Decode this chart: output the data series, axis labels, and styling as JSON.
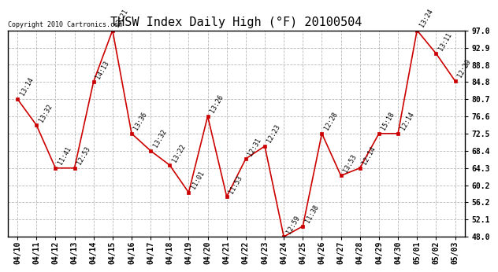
{
  "title": "THSW Index Daily High (°F) 20100504",
  "copyright": "Copyright 2010 Cartronics.com",
  "dates": [
    "04/10",
    "04/11",
    "04/12",
    "04/13",
    "04/14",
    "04/15",
    "04/16",
    "04/17",
    "04/18",
    "04/19",
    "04/20",
    "04/21",
    "04/22",
    "04/23",
    "04/24",
    "04/25",
    "04/26",
    "04/27",
    "04/28",
    "04/29",
    "04/30",
    "05/01",
    "05/02",
    "05/03"
  ],
  "values": [
    80.7,
    74.5,
    64.3,
    64.3,
    84.8,
    97.0,
    72.5,
    68.4,
    65.0,
    58.5,
    76.6,
    57.5,
    66.5,
    69.5,
    48.0,
    50.5,
    72.5,
    62.5,
    64.3,
    72.5,
    72.5,
    97.0,
    91.5,
    85.0
  ],
  "times": [
    "13:14",
    "13:32",
    "11:41",
    "12:53",
    "14:13",
    "13:21",
    "13:36",
    "13:32",
    "13:22",
    "11:01",
    "13:26",
    "11:53",
    "12:31",
    "12:23",
    "12:59",
    "11:38",
    "12:28",
    "13:53",
    "12:14",
    "15:18",
    "12:14",
    "13:24",
    "13:11",
    "12:29"
  ],
  "ylim": [
    48.0,
    97.0
  ],
  "yticks": [
    48.0,
    52.1,
    56.2,
    60.2,
    64.3,
    68.4,
    72.5,
    76.6,
    80.7,
    84.8,
    88.8,
    92.9,
    97.0
  ],
  "line_color": "#cc0000",
  "marker_color": "#cc0000",
  "bg_color": "#ffffff",
  "grid_color": "#b0b0b0",
  "title_fontsize": 11,
  "tick_fontsize": 7,
  "annot_fontsize": 6,
  "copyright_fontsize": 6
}
